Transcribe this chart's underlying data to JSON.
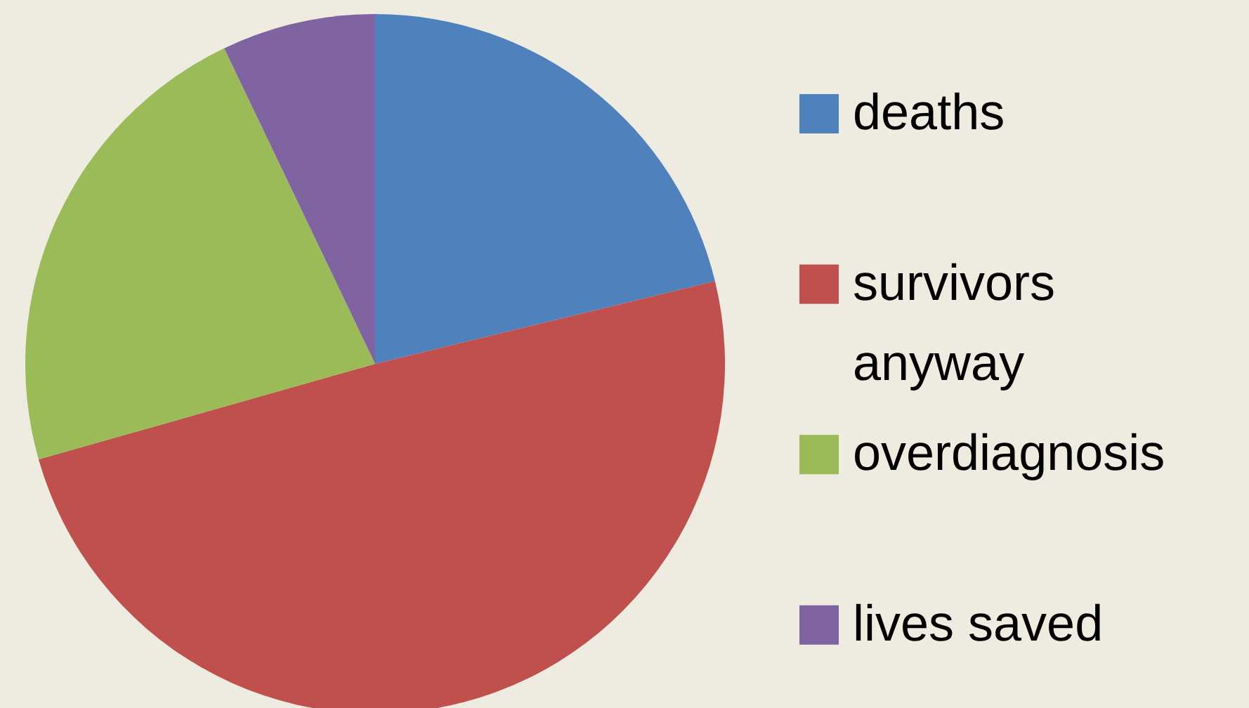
{
  "chart_data": {
    "type": "pie",
    "categories": [
      "deaths",
      "survivors anyway",
      "overdiagnosis",
      "lives saved"
    ],
    "values": [
      21.2,
      49.4,
      22.3,
      7.1
    ],
    "colors": [
      "#4f81bd",
      "#c0504d",
      "#9bbb59",
      "#8064a2"
    ],
    "legend": "right"
  }
}
